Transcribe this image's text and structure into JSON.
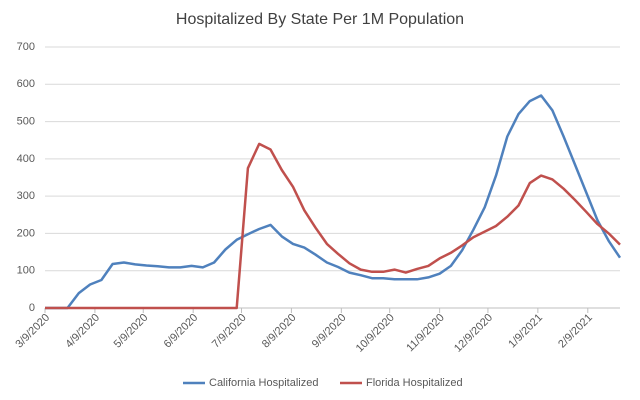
{
  "chart_data": {
    "type": "line",
    "title": "Hospitalized By State Per 1M Population",
    "x": [
      "3/9/2020",
      "3/16/2020",
      "3/23/2020",
      "3/30/2020",
      "4/6/2020",
      "4/13/2020",
      "4/20/2020",
      "4/27/2020",
      "5/4/2020",
      "5/11/2020",
      "5/18/2020",
      "5/25/2020",
      "6/1/2020",
      "6/8/2020",
      "6/15/2020",
      "6/22/2020",
      "6/29/2020",
      "7/6/2020",
      "7/13/2020",
      "7/20/2020",
      "7/27/2020",
      "8/3/2020",
      "8/10/2020",
      "8/17/2020",
      "8/24/2020",
      "8/31/2020",
      "9/7/2020",
      "9/14/2020",
      "9/21/2020",
      "9/28/2020",
      "10/5/2020",
      "10/12/2020",
      "10/19/2020",
      "10/26/2020",
      "11/2/2020",
      "11/9/2020",
      "11/16/2020",
      "11/23/2020",
      "11/30/2020",
      "12/7/2020",
      "12/14/2020",
      "12/21/2020",
      "12/28/2020",
      "1/4/2021",
      "1/11/2021",
      "1/18/2021",
      "1/25/2021",
      "2/1/2021",
      "2/8/2021",
      "2/15/2021",
      "2/22/2021",
      "3/1/2021"
    ],
    "series": [
      {
        "name": "California Hospitalized",
        "color": "#4f81bd",
        "values": [
          0,
          0,
          0,
          40,
          63,
          75,
          118,
          122,
          117,
          114,
          112,
          109,
          109,
          113,
          109,
          122,
          157,
          183,
          198,
          212,
          223,
          192,
          172,
          162,
          143,
          122,
          110,
          95,
          88,
          80,
          80,
          77,
          77,
          77,
          82,
          92,
          113,
          155,
          210,
          270,
          355,
          460,
          520,
          555,
          570,
          530,
          460,
          385,
          310,
          235,
          180,
          135
        ]
      },
      {
        "name": "Florida Hospitalized",
        "color": "#c0504d",
        "values": [
          0,
          0,
          0,
          0,
          0,
          0,
          0,
          0,
          0,
          0,
          0,
          0,
          0,
          0,
          0,
          0,
          0,
          0,
          375,
          440,
          425,
          370,
          325,
          262,
          215,
          172,
          145,
          120,
          103,
          97,
          97,
          103,
          95,
          105,
          113,
          133,
          148,
          168,
          190,
          205,
          220,
          245,
          275,
          335,
          355,
          345,
          320,
          290,
          258,
          225,
          200,
          170
        ]
      }
    ],
    "xlim": [
      "3/9/2020",
      "3/1/2021"
    ],
    "xticks": [
      "3/9/2020",
      "4/9/2020",
      "5/9/2020",
      "6/9/2020",
      "7/9/2020",
      "8/9/2020",
      "9/9/2020",
      "10/9/2020",
      "11/9/2020",
      "12/9/2020",
      "1/9/2021",
      "2/9/2021"
    ],
    "ylim": [
      0,
      700
    ],
    "yticks": [
      0,
      100,
      200,
      300,
      400,
      500,
      600,
      700
    ],
    "grid": true,
    "legend": "bottom"
  }
}
